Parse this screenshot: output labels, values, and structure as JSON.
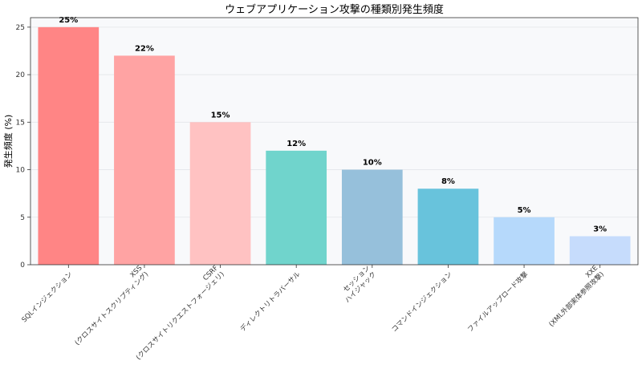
{
  "chart_data": {
    "type": "bar",
    "title": "ウェブアプリケーション攻撃の種類別発生頻度",
    "xlabel": "",
    "ylabel": "発生頻度 (%)",
    "ylim": [
      0,
      26
    ],
    "yticks": [
      0,
      5,
      10,
      15,
      20,
      25
    ],
    "grid": true,
    "categories": [
      [
        "SQLインジェクション"
      ],
      [
        "XSS",
        "(クロスサイトスクリプティング)"
      ],
      [
        "CSRF",
        "(クロスサイトリクエストフォージェリ)"
      ],
      [
        "ディレクトリトラバーサル"
      ],
      [
        "セッション",
        "ハイジャック"
      ],
      [
        "コマンドインジェクション"
      ],
      [
        "ファイルアップロード攻撃"
      ],
      [
        "XXE",
        "(XML外部実体参照攻撃)"
      ]
    ],
    "values": [
      25,
      22,
      15,
      12,
      10,
      8,
      5,
      3
    ],
    "value_labels": [
      "25%",
      "22%",
      "15%",
      "12%",
      "10%",
      "8%",
      "5%",
      "3%"
    ],
    "colors": [
      "#ff8585",
      "#ffa3a3",
      "#ffc2c2",
      "#70d4cc",
      "#96c0db",
      "#68c3dc",
      "#b6d9fb",
      "#c6dcfc"
    ]
  }
}
